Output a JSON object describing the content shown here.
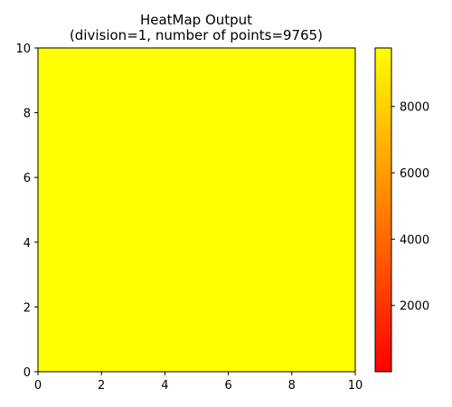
{
  "chart_data": {
    "type": "heatmap",
    "title_lines": [
      "HeatMap Output",
      "(division=1, number of points=9765)"
    ],
    "xlabel": "",
    "ylabel": "",
    "xlim": [
      0,
      10
    ],
    "ylim": [
      0,
      10
    ],
    "x_ticks": [
      "0",
      "2",
      "4",
      "6",
      "8",
      "10"
    ],
    "y_ticks": [
      "0",
      "2",
      "4",
      "6",
      "8",
      "10"
    ],
    "cells": [
      {
        "x": [
          0,
          10
        ],
        "y": [
          0,
          10
        ],
        "value": 9765
      }
    ],
    "colorbar": {
      "colormap": "autumn",
      "low_color": "#ff0000",
      "high_color": "#ffff00",
      "range": [
        1,
        9765
      ],
      "tick_labels": [
        "2000",
        "4000",
        "6000",
        "8000"
      ]
    },
    "grid": false
  }
}
